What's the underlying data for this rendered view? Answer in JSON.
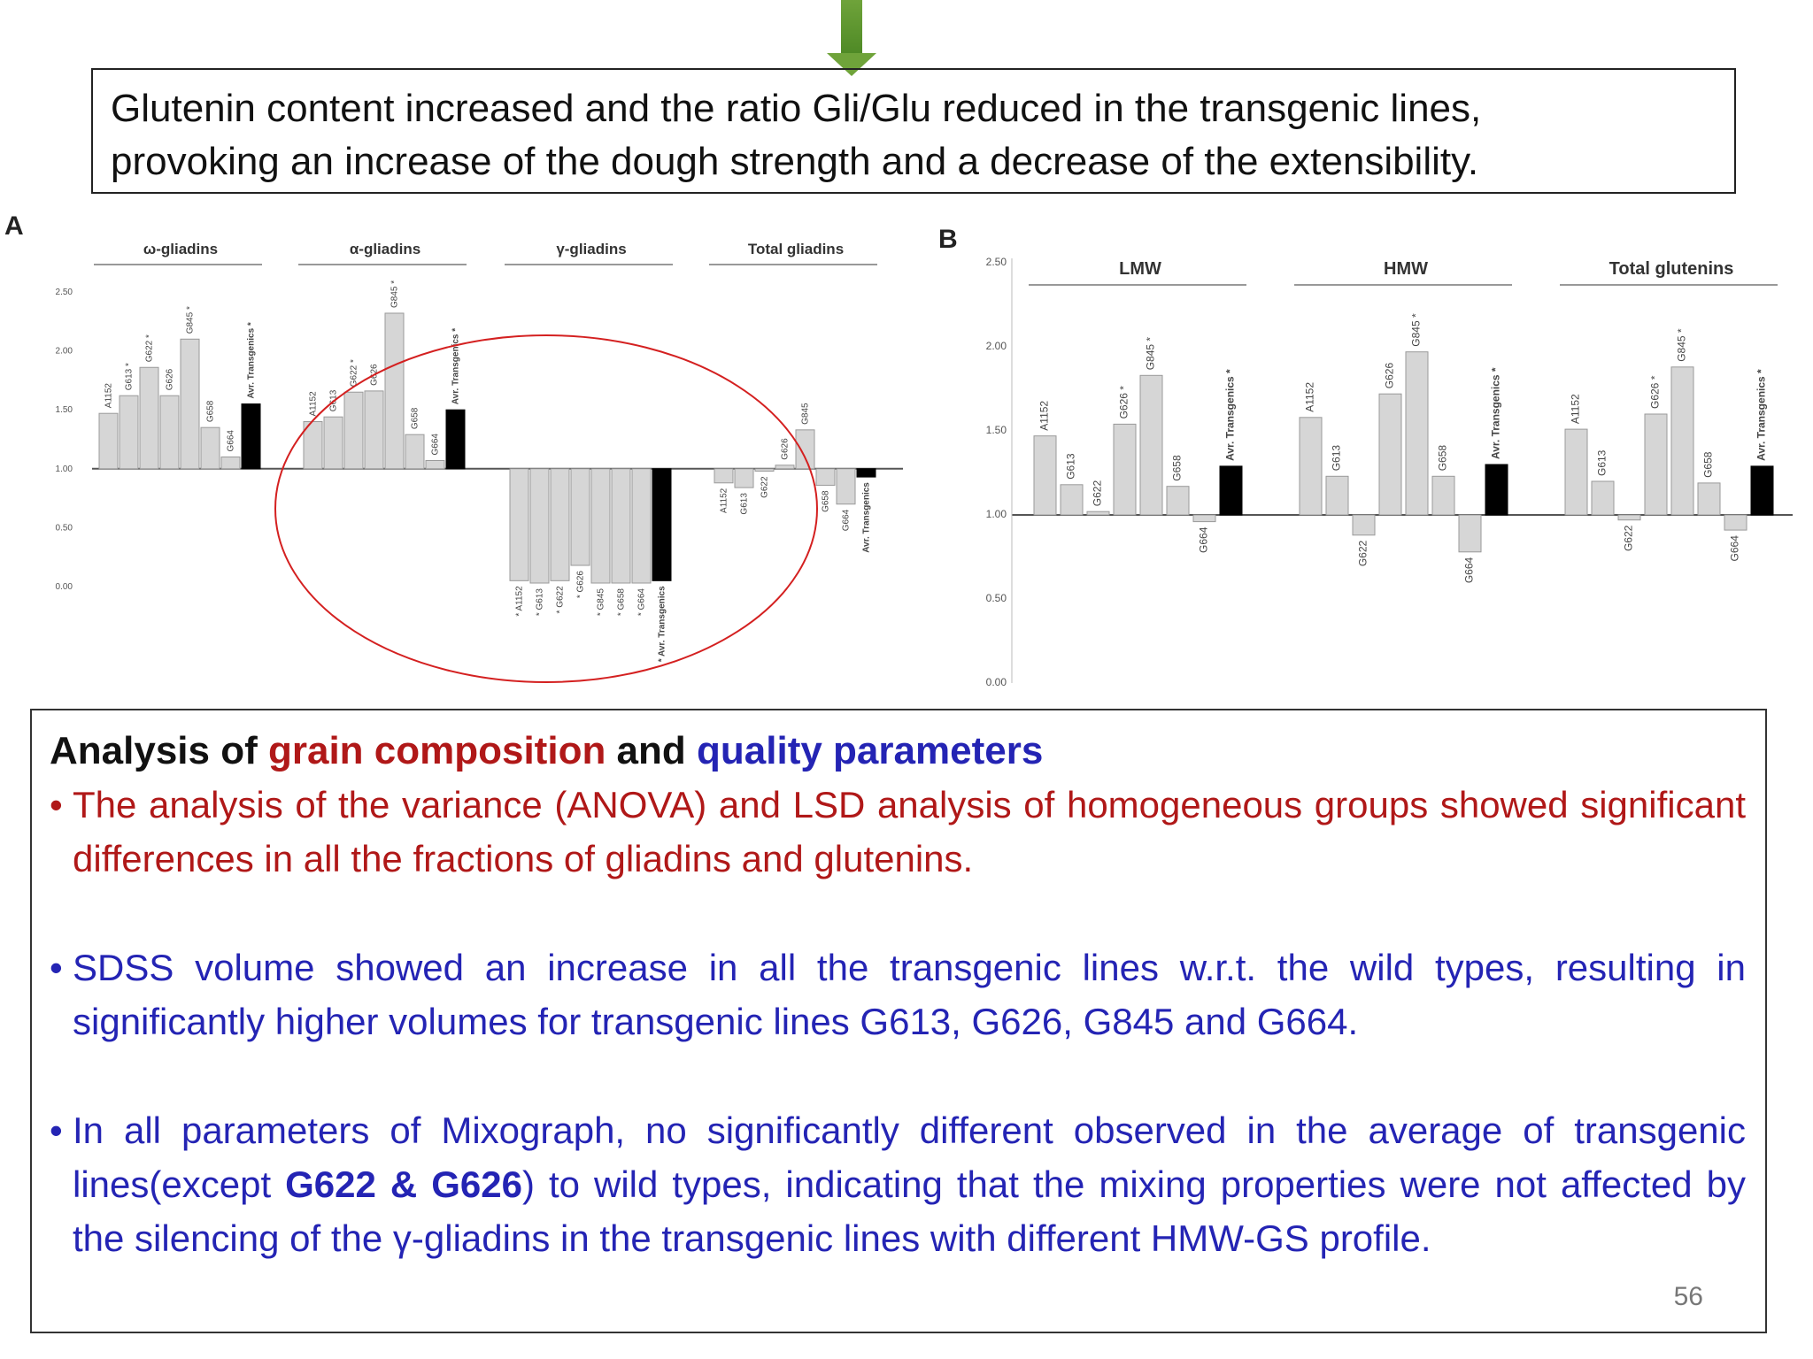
{
  "top_box": {
    "line1": "Glutenin content  increased and the ratio Gli/Glu reduced in the transgenic lines,",
    "line2": "provoking an increase of the dough strength and a decrease of the extensibility."
  },
  "chart_data": [
    {
      "type": "bar",
      "panel_label": "A",
      "baseline": 1.0,
      "ylim": [
        0,
        2.5
      ],
      "yticks": [
        "2.50",
        "2.00",
        "1.50",
        "1.00",
        "0.50",
        "0.00"
      ],
      "groups": [
        {
          "title": "ω-gliadins",
          "categories": [
            "A1152",
            "G613 *",
            "G622 *",
            "G626",
            "G845 *",
            "G658",
            "G664",
            "Avr. Transgenics *"
          ],
          "values": [
            1.47,
            1.62,
            1.86,
            1.62,
            2.1,
            1.35,
            1.1,
            1.55
          ]
        },
        {
          "title": "α-gliadins",
          "categories": [
            "A1152",
            "G613",
            "G622 *",
            "G626",
            "G845 *",
            "G658",
            "G664",
            "Avr. Transgenics *"
          ],
          "values": [
            1.4,
            1.44,
            1.65,
            1.66,
            2.32,
            1.29,
            1.07,
            1.5
          ]
        },
        {
          "title": "γ-gliadins",
          "categories": [
            "* A1152",
            "* G613",
            "* G622",
            "* G626",
            "* G845",
            "* G658",
            "* G664",
            "* Avr. Transgenics"
          ],
          "values": [
            0.05,
            0.03,
            0.05,
            0.18,
            0.03,
            0.03,
            0.03,
            0.05
          ]
        },
        {
          "title": "Total gliadins",
          "categories": [
            "A1152",
            "G613",
            "G622",
            "G626",
            "G845",
            "G658",
            "G664",
            "Avr. Transgenics"
          ],
          "values": [
            0.88,
            0.84,
            0.98,
            1.03,
            1.33,
            0.86,
            0.7,
            0.93
          ]
        }
      ]
    },
    {
      "type": "bar",
      "panel_label": "B",
      "baseline": 1.0,
      "ylim": [
        0,
        2.5
      ],
      "yticks": [
        "2.50",
        "2.00",
        "1.50",
        "1.00",
        "0.50",
        "0.00"
      ],
      "groups": [
        {
          "title": "LMW",
          "categories": [
            "A1152",
            "G613",
            "G622",
            "G626 *",
            "G845 *",
            "G658",
            "G664",
            "Avr. Transgenics *"
          ],
          "values": [
            1.47,
            1.18,
            1.02,
            1.54,
            1.83,
            1.17,
            0.96,
            1.29
          ]
        },
        {
          "title": "HMW",
          "categories": [
            "A1152",
            "G613",
            "G622",
            "G626",
            "G845 *",
            "G658",
            "G664",
            "Avr. Transgenics *"
          ],
          "values": [
            1.58,
            1.23,
            0.88,
            1.72,
            1.97,
            1.23,
            0.78,
            1.3
          ]
        },
        {
          "title": "Total glutenins",
          "categories": [
            "A1152",
            "G613",
            "G622",
            "G626 *",
            "G845 *",
            "G658",
            "G664",
            "Avr. Transgenics *"
          ],
          "values": [
            1.51,
            1.2,
            0.97,
            1.6,
            1.88,
            1.19,
            0.91,
            1.29
          ]
        }
      ]
    }
  ],
  "bottom_box": {
    "heading_pre": "Analysis of ",
    "heading_red": "grain composition",
    "heading_mid": " and ",
    "heading_blue": "quality parameters",
    "bullet_char": "•",
    "bullet1": "The analysis of the variance (ANOVA) and LSD analysis of homogeneous groups showed significant differences in all the fractions of gliadins and glutenins.",
    "bullet2": "SDSS volume showed an increase in all the transgenic lines w.r.t. the wild types, resulting in significantly higher volumes for transgenic lines G613, G626, G845 and G664.",
    "bullet3_pre": "In all parameters of Mixograph, no significantly different observed in the average of transgenic lines(except ",
    "bullet3_bold": "G622 & G626",
    "bullet3_post": ") to wild types, indicating that the mixing properties were not affected by the silencing of the γ-gliadins in the transgenic lines with different HMW-GS profile."
  },
  "page_number": "56"
}
